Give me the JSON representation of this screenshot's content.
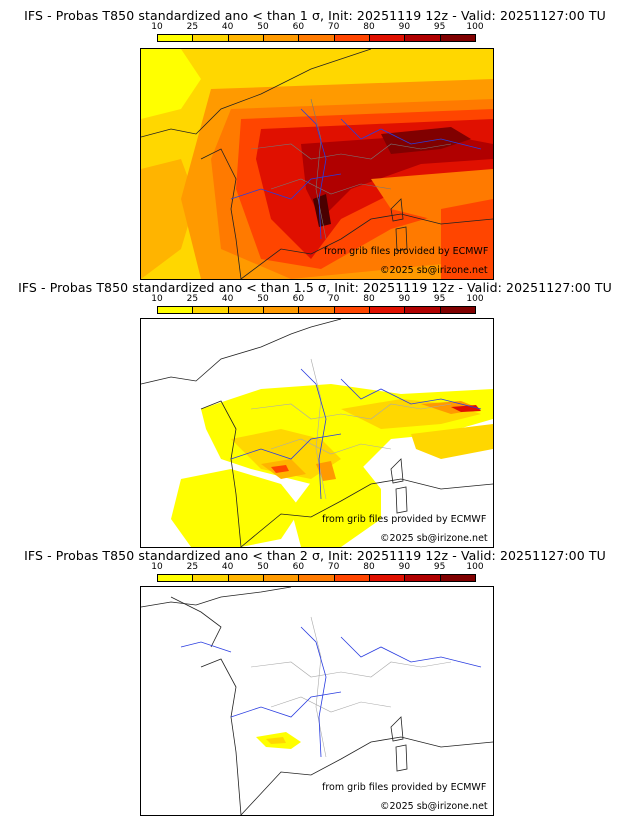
{
  "legend_levels": [
    "10",
    "25",
    "40",
    "50",
    "60",
    "70",
    "80",
    "90",
    "95",
    "100"
  ],
  "legend_colors": [
    "#ffff00",
    "#ffd700",
    "#ffb400",
    "#ff9a00",
    "#ff7a00",
    "#ff4500",
    "#e01000",
    "#b00000",
    "#800000",
    "#4a0000"
  ],
  "credit_source": "from grib files provided by ECMWF",
  "credit_copyright": "©2025 sb@irizone.net",
  "panels": [
    {
      "title": "IFS - Probas T850  standardized ano < than 1 σ, Init: 20251119 12z - Valid: 20251127:00 TU"
    },
    {
      "title": "IFS - Probas T850  standardized ano < than 1.5 σ, Init: 20251119 12z - Valid: 20251127:00 TU"
    },
    {
      "title": "IFS - Probas T850  standardized ano < than 2 σ, Init: 20251119 12z - Valid: 20251127:00 TU"
    }
  ]
}
